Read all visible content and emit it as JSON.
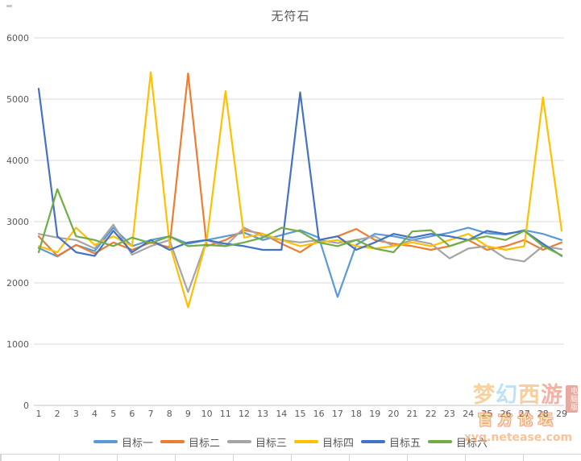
{
  "page": {
    "background": "#ffffff"
  },
  "chart_data": {
    "type": "line",
    "title": "无符石",
    "x": [
      1,
      2,
      3,
      4,
      5,
      6,
      7,
      8,
      9,
      10,
      11,
      12,
      13,
      14,
      15,
      16,
      17,
      18,
      19,
      20,
      21,
      22,
      23,
      24,
      25,
      26,
      27,
      28,
      29
    ],
    "xlabel": "",
    "ylabel": "",
    "ylim": [
      0,
      6000
    ],
    "yticks": [
      0,
      1000,
      2000,
      3000,
      4000,
      5000,
      6000
    ],
    "grid": true,
    "legend_position": "bottom",
    "series": [
      {
        "name": "目标一",
        "color": "#5B9BD5",
        "values": [
          2570,
          2430,
          2620,
          2520,
          2900,
          2600,
          2700,
          2760,
          2640,
          2700,
          2760,
          2820,
          2700,
          2780,
          2860,
          2740,
          1770,
          2620,
          2800,
          2760,
          2700,
          2760,
          2820,
          2900,
          2810,
          2790,
          2860,
          2800,
          2700
        ]
      },
      {
        "name": "目标二",
        "color": "#ED7D31",
        "values": [
          2760,
          2440,
          2620,
          2480,
          2660,
          2540,
          2660,
          2580,
          5420,
          2600,
          2700,
          2860,
          2800,
          2640,
          2500,
          2700,
          2760,
          2880,
          2700,
          2640,
          2600,
          2540,
          2600,
          2700,
          2540,
          2600,
          2700,
          2540,
          2660
        ]
      },
      {
        "name": "目标三",
        "color": "#A5A5A5",
        "values": [
          2800,
          2740,
          2700,
          2560,
          2950,
          2460,
          2600,
          2700,
          1850,
          2700,
          2600,
          2900,
          2760,
          2700,
          2660,
          2700,
          2650,
          2700,
          2760,
          2600,
          2700,
          2640,
          2400,
          2560,
          2600,
          2400,
          2350,
          2600,
          2550
        ]
      },
      {
        "name": "目标四",
        "color": "#FFC000",
        "values": [
          2600,
          2500,
          2900,
          2620,
          2760,
          2600,
          5440,
          2640,
          1600,
          2700,
          5130,
          2740,
          2800,
          2700,
          2600,
          2660,
          2700,
          2600,
          2560,
          2600,
          2660,
          2600,
          2700,
          2800,
          2600,
          2540,
          2600,
          5030,
          2850
        ]
      },
      {
        "name": "目标五",
        "color": "#4472C4",
        "values": [
          5170,
          2760,
          2500,
          2440,
          2850,
          2500,
          2700,
          2540,
          2660,
          2700,
          2640,
          2600,
          2540,
          2540,
          5110,
          2700,
          2760,
          2540,
          2660,
          2800,
          2740,
          2800,
          2760,
          2700,
          2850,
          2800,
          2850,
          2640,
          2440
        ]
      },
      {
        "name": "目标六",
        "color": "#70AD47",
        "values": [
          2500,
          3530,
          2760,
          2700,
          2600,
          2740,
          2650,
          2760,
          2600,
          2620,
          2600,
          2660,
          2740,
          2900,
          2840,
          2660,
          2600,
          2700,
          2560,
          2500,
          2840,
          2860,
          2600,
          2700,
          2760,
          2700,
          2850,
          2600,
          2450
        ]
      }
    ]
  },
  "colors": {
    "grid": "#d9d9d9",
    "axis": "#c6c6c6",
    "tick_label": "#595959",
    "title": "#595959",
    "sheet_gridline": "#d4d4d4"
  },
  "watermark": {
    "title": "梦幻西游",
    "subtitle": "官方论坛",
    "url": "xyq.netease.com",
    "badge": "电脑版"
  }
}
